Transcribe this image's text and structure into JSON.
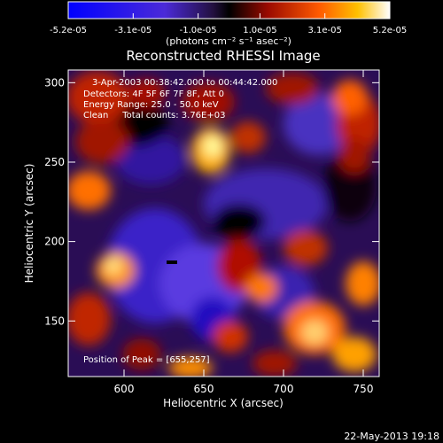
{
  "chart_data": {
    "type": "heatmap",
    "title": "Reconstructed RHESSI Image",
    "xlabel": "Heliocentric X (arcsec)",
    "ylabel": "Heliocentric Y (arcsec)",
    "xlim": [
      565,
      760
    ],
    "ylim": [
      115,
      308
    ],
    "x_ticks": [
      "600",
      "650",
      "700",
      "750"
    ],
    "y_ticks": [
      "150",
      "200",
      "250",
      "300"
    ],
    "colorbar": {
      "tick_labels": [
        "-5.2e-05",
        "-3.1e-05",
        "-1.0e-05",
        "1.0e-05",
        "3.1e-05",
        "5.2e-05"
      ],
      "range": [
        -5.2e-05,
        5.2e-05
      ],
      "unit_text": "(photons cm⁻² s⁻¹ asec⁻²)"
    },
    "annotations": [
      "3-Apr-2003 00:38:42.000 to 00:44:42.000",
      "Detectors: 4F 5F 6F 7F 8F, Att 0",
      "Energy Range: 25.0 - 50.0 keV",
      "Clean     Total counts: 3.76E+03"
    ],
    "peak_text": "Position of Peak = [655,257]",
    "peak": [
      655,
      257
    ],
    "footer": "22-May-2013 19:18"
  }
}
